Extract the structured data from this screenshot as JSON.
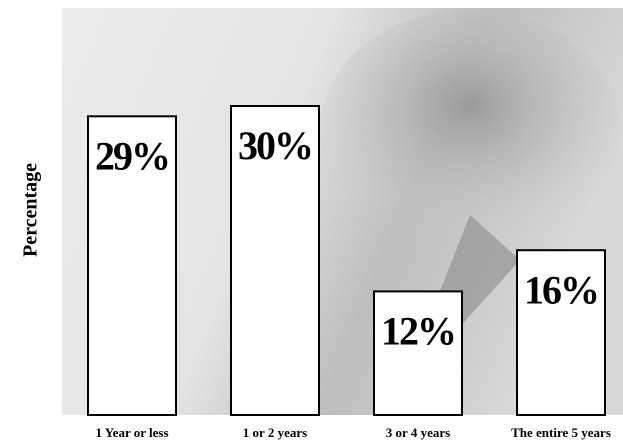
{
  "chart_data": {
    "type": "bar",
    "y_label": "Percentage",
    "categories": [
      "1 Year or less",
      "1 or 2 years",
      "3 or 4 years",
      "The entire 5 years"
    ],
    "values": [
      29,
      30,
      12,
      16
    ],
    "value_labels": [
      "29%",
      "30%",
      "12%",
      "16%"
    ],
    "color": "#ffffff"
  }
}
